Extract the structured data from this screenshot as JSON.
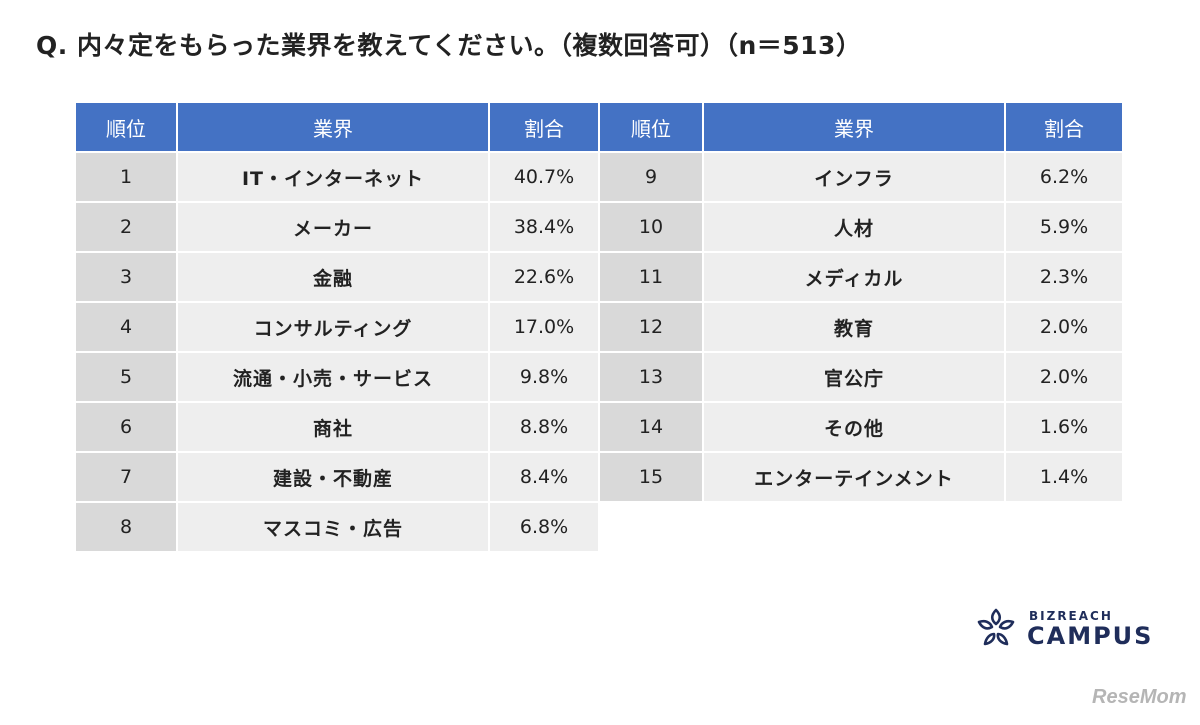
{
  "title": "Q. 内々定をもらった業界を教えてください。（複数回答可）（n＝513）",
  "headers": {
    "rank": "順位",
    "industry": "業界",
    "ratio": "割合"
  },
  "left_rows": [
    {
      "rank": "1",
      "industry": "IT・インターネット",
      "ratio": "40.7%"
    },
    {
      "rank": "2",
      "industry": "メーカー",
      "ratio": "38.4%"
    },
    {
      "rank": "3",
      "industry": "金融",
      "ratio": "22.6%"
    },
    {
      "rank": "4",
      "industry": "コンサルティング",
      "ratio": "17.0%"
    },
    {
      "rank": "5",
      "industry": "流通・小売・サービス",
      "ratio": "9.8%"
    },
    {
      "rank": "6",
      "industry": "商社",
      "ratio": "8.8%"
    },
    {
      "rank": "7",
      "industry": "建設・不動産",
      "ratio": "8.4%"
    },
    {
      "rank": "8",
      "industry": "マスコミ・広告",
      "ratio": "6.8%"
    }
  ],
  "right_rows": [
    {
      "rank": "9",
      "industry": "インフラ",
      "ratio": "6.2%"
    },
    {
      "rank": "10",
      "industry": "人材",
      "ratio": "5.9%"
    },
    {
      "rank": "11",
      "industry": "メディカル",
      "ratio": "2.3%"
    },
    {
      "rank": "12",
      "industry": "教育",
      "ratio": "2.0%"
    },
    {
      "rank": "13",
      "industry": "官公庁",
      "ratio": "2.0%"
    },
    {
      "rank": "14",
      "industry": "その他",
      "ratio": "1.6%"
    },
    {
      "rank": "15",
      "industry": "エンターテインメント",
      "ratio": "1.4%"
    }
  ],
  "logo": {
    "sub": "BIZREACH",
    "main": "CAMPUS",
    "icon": "flower-logo-icon",
    "color": "#1f2d5a"
  },
  "watermark": "ReseMom",
  "colors": {
    "header_bg": "#4472c4",
    "rank_bg": "#d9d9d9",
    "cell_bg": "#eeeeee"
  }
}
